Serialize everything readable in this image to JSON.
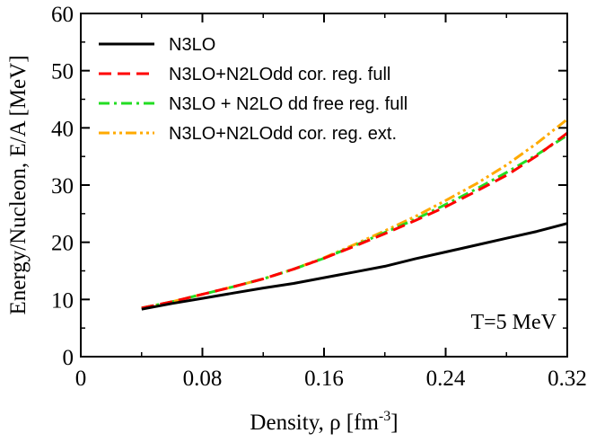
{
  "chart_data": {
    "type": "line",
    "title": "",
    "xlabel": "Density, ρ [fm",
    "xlabel_sup": "-3",
    "xlabel_tail": "]",
    "ylabel": "Energy/Nucleon, E/A [MeV]",
    "xlim": [
      0,
      0.32
    ],
    "ylim": [
      0,
      60
    ],
    "xticks": [
      0,
      0.08,
      0.16,
      0.24,
      0.32
    ],
    "xtick_labels": [
      "0",
      "0.08",
      "0.16",
      "0.24",
      "0.32"
    ],
    "yticks": [
      0,
      10,
      20,
      30,
      40,
      50,
      60
    ],
    "ytick_labels": [
      "0",
      "10",
      "20",
      "30",
      "40",
      "50",
      "60"
    ],
    "annotation": "T=5 MeV",
    "legend_position": "top-left",
    "series": [
      {
        "name": "N3LO",
        "color": "#000000",
        "style": "solid",
        "x": [
          0.04,
          0.06,
          0.08,
          0.1,
          0.12,
          0.14,
          0.16,
          0.18,
          0.2,
          0.22,
          0.24,
          0.26,
          0.28,
          0.3,
          0.32
        ],
        "y": [
          8.3,
          9.3,
          10.2,
          11.1,
          12.0,
          12.8,
          13.8,
          14.8,
          15.8,
          17.1,
          18.3,
          19.5,
          20.7,
          21.9,
          23.3
        ]
      },
      {
        "name": "N3LO+N2LOdd cor. reg. full",
        "color": "#ff0000",
        "style": "dash",
        "x": [
          0.04,
          0.06,
          0.08,
          0.1,
          0.12,
          0.14,
          0.16,
          0.18,
          0.2,
          0.22,
          0.24,
          0.26,
          0.28,
          0.3,
          0.32
        ],
        "y": [
          8.5,
          9.6,
          10.9,
          12.2,
          13.6,
          15.3,
          17.2,
          19.3,
          21.5,
          23.8,
          26.2,
          28.9,
          31.7,
          35.1,
          39.1
        ]
      },
      {
        "name": "N3LO + N2LO dd free reg. full",
        "color": "#22dd22",
        "style": "dashdot",
        "x": [
          0.04,
          0.06,
          0.08,
          0.1,
          0.12,
          0.14,
          0.16,
          0.18,
          0.2,
          0.22,
          0.24,
          0.26,
          0.28,
          0.3,
          0.32
        ],
        "y": [
          8.5,
          9.6,
          10.9,
          12.2,
          13.6,
          15.3,
          17.2,
          19.4,
          21.7,
          24.0,
          26.6,
          29.3,
          32.2,
          35.3,
          38.7
        ]
      },
      {
        "name": "N3LO+N2LOdd cor. reg. ext.",
        "color": "#ffaa00",
        "style": "dashdotdot",
        "x": [
          0.04,
          0.06,
          0.08,
          0.1,
          0.12,
          0.14,
          0.16,
          0.18,
          0.2,
          0.22,
          0.24,
          0.26,
          0.28,
          0.3,
          0.32
        ],
        "y": [
          8.5,
          9.6,
          10.9,
          12.2,
          13.6,
          15.3,
          17.3,
          19.6,
          22.0,
          24.5,
          27.3,
          30.2,
          33.5,
          37.3,
          41.5
        ]
      }
    ]
  }
}
